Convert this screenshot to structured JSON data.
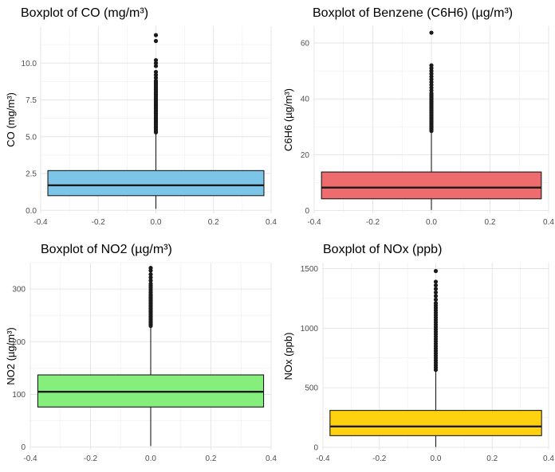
{
  "chart_data": [
    {
      "type": "boxplot",
      "title": "Boxplot of CO (mg/m³)",
      "xlabel": "",
      "ylabel": "CO (mg/m³)",
      "fill": "#7CC4E8",
      "xlim": [
        -0.4,
        0.4
      ],
      "ylim": [
        -0.2,
        12.5
      ],
      "x_ticks": [
        -0.4,
        -0.2,
        0.0,
        0.2,
        0.4
      ],
      "x_tick_labels": [
        "-0.4",
        "-0.2",
        "0.0",
        "0.2",
        "0.4"
      ],
      "y_ticks": [
        0,
        2.5,
        5,
        7.5,
        10
      ],
      "y_tick_labels": [
        "0.0",
        "2.5",
        "5.0",
        "7.5",
        "10.0"
      ],
      "box": {
        "x_min": -0.375,
        "x_max": 0.375,
        "center": 0,
        "whisker_low": 0.1,
        "q1": 1.0,
        "median": 1.7,
        "q3": 2.7,
        "whisker_high": 5.2
      },
      "outliers": [
        5.3,
        5.4,
        5.5,
        5.6,
        5.7,
        5.8,
        5.9,
        6.0,
        6.1,
        6.2,
        6.3,
        6.4,
        6.5,
        6.6,
        6.7,
        6.8,
        6.9,
        7.0,
        7.1,
        7.2,
        7.3,
        7.4,
        7.5,
        7.6,
        7.7,
        7.8,
        7.9,
        8.0,
        8.1,
        8.2,
        8.3,
        8.4,
        8.5,
        8.6,
        8.7,
        8.8,
        9.0,
        9.2,
        9.4,
        9.8,
        10.0,
        10.2,
        11.5,
        11.9
      ]
    },
    {
      "type": "boxplot",
      "title": "Boxplot of Benzene (C6H6) (µg/m³)",
      "xlabel": "",
      "ylabel": "C6H6 (µg/m³)",
      "fill": "#EE6B6E",
      "xlim": [
        -0.4,
        0.4
      ],
      "ylim": [
        -1,
        66
      ],
      "x_ticks": [
        -0.4,
        -0.2,
        0.0,
        0.2,
        0.4
      ],
      "x_tick_labels": [
        "-0.4",
        "-0.2",
        "0.0",
        "0.2",
        "0.4"
      ],
      "y_ticks": [
        0,
        20,
        40,
        60
      ],
      "y_tick_labels": [
        "0",
        "20",
        "40",
        "60"
      ],
      "box": {
        "x_min": -0.375,
        "x_max": 0.375,
        "center": 0,
        "whisker_low": 0.2,
        "q1": 4.2,
        "median": 8.2,
        "q3": 13.8,
        "whisker_high": 27.8
      },
      "outliers": [
        28.5,
        29,
        29.5,
        30,
        30.5,
        31,
        31.5,
        32,
        32.5,
        33,
        33.5,
        34,
        34.5,
        35,
        35.5,
        36,
        36.5,
        37,
        37.5,
        38,
        38.5,
        39,
        39.5,
        40,
        40.5,
        41,
        41.5,
        42,
        43,
        44,
        45,
        46,
        47,
        48,
        49,
        50,
        51,
        52,
        63.7
      ]
    },
    {
      "type": "boxplot",
      "title": "Boxplot of NO2 (µg/m³)",
      "xlabel": "",
      "ylabel": "NO2 (µg/m³)",
      "fill": "#86EE7C",
      "xlim": [
        -0.4,
        0.4
      ],
      "ylim": [
        -5,
        350
      ],
      "x_ticks": [
        -0.4,
        -0.2,
        0.0,
        0.2,
        0.4
      ],
      "x_tick_labels": [
        "-0.4",
        "-0.2",
        "0.0",
        "0.2",
        "0.4"
      ],
      "y_ticks": [
        0,
        100,
        200,
        300
      ],
      "y_tick_labels": [
        "0",
        "100",
        "200",
        "300"
      ],
      "box": {
        "x_min": -0.375,
        "x_max": 0.375,
        "center": 0,
        "whisker_low": 2,
        "q1": 76,
        "median": 105,
        "q3": 137,
        "whisker_high": 228
      },
      "outliers": [
        230,
        233,
        236,
        239,
        242,
        245,
        248,
        251,
        254,
        257,
        260,
        263,
        266,
        269,
        272,
        275,
        278,
        281,
        284,
        287,
        290,
        294,
        298,
        302,
        306,
        310,
        316,
        322,
        328,
        335,
        340
      ]
    },
    {
      "type": "boxplot",
      "title": "Boxplot of NOx (ppb)",
      "xlabel": "",
      "ylabel": "NOx (ppb)",
      "fill": "#FFD10F",
      "xlim": [
        -0.4,
        0.4
      ],
      "ylim": [
        -20,
        1550
      ],
      "x_ticks": [
        -0.4,
        -0.2,
        0.0,
        0.2,
        0.4
      ],
      "x_tick_labels": [
        "-0.4",
        "-0.2",
        "0.0",
        "0.2",
        "0.4"
      ],
      "y_ticks": [
        0,
        500,
        1000,
        1500
      ],
      "y_tick_labels": [
        "0",
        "500",
        "1000",
        "1500"
      ],
      "box": {
        "x_min": -0.375,
        "x_max": 0.375,
        "center": 0,
        "whisker_low": 2,
        "q1": 98,
        "median": 175,
        "q3": 310,
        "whisker_high": 640
      },
      "outliers": [
        650,
        670,
        690,
        710,
        730,
        750,
        770,
        790,
        810,
        830,
        850,
        870,
        890,
        910,
        930,
        950,
        970,
        990,
        1010,
        1030,
        1050,
        1070,
        1090,
        1110,
        1130,
        1150,
        1170,
        1190,
        1210,
        1240,
        1270,
        1300,
        1330,
        1360,
        1390,
        1480
      ]
    }
  ]
}
